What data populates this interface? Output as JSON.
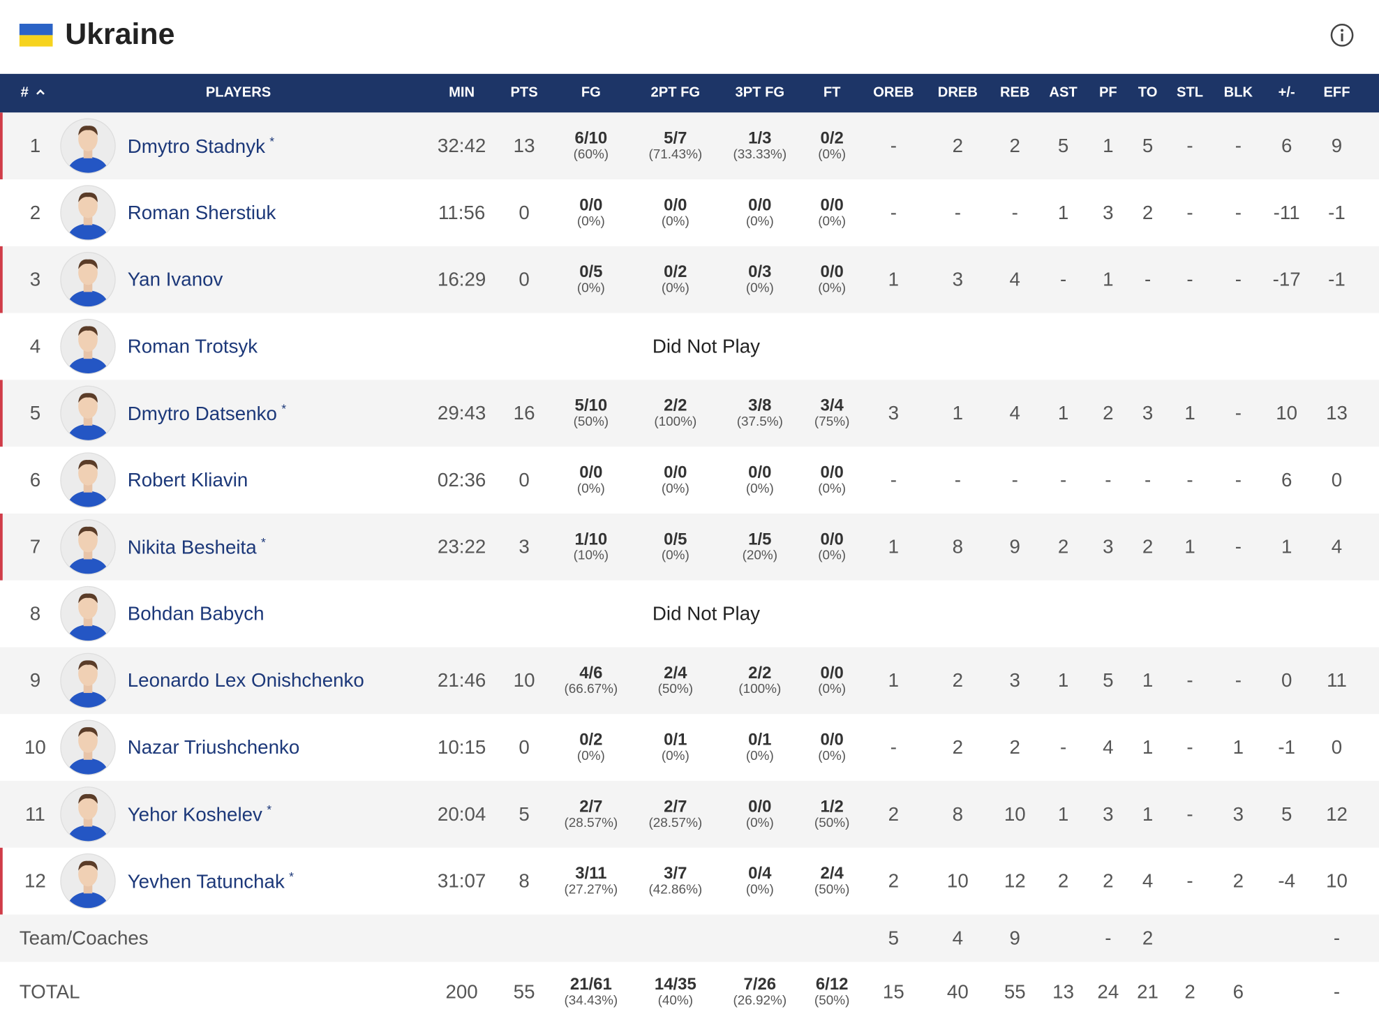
{
  "header": {
    "title": "Ukraine"
  },
  "table": {
    "columns": [
      "#",
      "PLAYERS",
      "MIN",
      "PTS",
      "FG",
      "2PT FG",
      "3PT FG",
      "FT",
      "OREB",
      "DREB",
      "REB",
      "AST",
      "PF",
      "TO",
      "STL",
      "BLK",
      "+/-",
      "EFF"
    ],
    "rows": [
      {
        "number": "1",
        "name": "Dmytro Stadnyk",
        "starter": "*",
        "stats": [
          "32:42",
          "13",
          {
            "m": "6/10",
            "p": "(60%)"
          },
          {
            "m": "5/7",
            "p": "(71.43%)"
          },
          {
            "m": "1/3",
            "p": "(33.33%)"
          },
          {
            "m": "0/2",
            "p": "(0%)"
          },
          "-",
          "2",
          "2",
          "5",
          "1",
          "5",
          "-",
          "-",
          "6",
          "9"
        ]
      },
      {
        "number": "2",
        "name": "Roman Sherstiuk",
        "stats": [
          "11:56",
          "0",
          {
            "m": "0/0",
            "p": "(0%)"
          },
          {
            "m": "0/0",
            "p": "(0%)"
          },
          {
            "m": "0/0",
            "p": "(0%)"
          },
          {
            "m": "0/0",
            "p": "(0%)"
          },
          "-",
          "-",
          "-",
          "1",
          "3",
          "2",
          "-",
          "-",
          "-11",
          "-1"
        ]
      },
      {
        "number": "3",
        "name": "Yan Ivanov",
        "stats": [
          "16:29",
          "0",
          {
            "m": "0/5",
            "p": "(0%)"
          },
          {
            "m": "0/2",
            "p": "(0%)"
          },
          {
            "m": "0/3",
            "p": "(0%)"
          },
          {
            "m": "0/0",
            "p": "(0%)"
          },
          "1",
          "3",
          "4",
          "-",
          "1",
          "-",
          "-",
          "-",
          "-17",
          "-1"
        ]
      },
      {
        "number": "4",
        "name": "Roman Trotsyk",
        "dnp": "Did Not Play"
      },
      {
        "number": "5",
        "name": "Dmytro Datsenko",
        "starter": "*",
        "stats": [
          "29:43",
          "16",
          {
            "m": "5/10",
            "p": "(50%)"
          },
          {
            "m": "2/2",
            "p": "(100%)"
          },
          {
            "m": "3/8",
            "p": "(37.5%)"
          },
          {
            "m": "3/4",
            "p": "(75%)"
          },
          "3",
          "1",
          "4",
          "1",
          "2",
          "3",
          "1",
          "-",
          "10",
          "13"
        ]
      },
      {
        "number": "6",
        "name": "Robert Kliavin",
        "stats": [
          "02:36",
          "0",
          {
            "m": "0/0",
            "p": "(0%)"
          },
          {
            "m": "0/0",
            "p": "(0%)"
          },
          {
            "m": "0/0",
            "p": "(0%)"
          },
          {
            "m": "0/0",
            "p": "(0%)"
          },
          "-",
          "-",
          "-",
          "-",
          "-",
          "-",
          "-",
          "-",
          "6",
          "0"
        ]
      },
      {
        "number": "7",
        "name": "Nikita Besheita",
        "starter": "*",
        "stats": [
          "23:22",
          "3",
          {
            "m": "1/10",
            "p": "(10%)"
          },
          {
            "m": "0/5",
            "p": "(0%)"
          },
          {
            "m": "1/5",
            "p": "(20%)"
          },
          {
            "m": "0/0",
            "p": "(0%)"
          },
          "1",
          "8",
          "9",
          "2",
          "3",
          "2",
          "1",
          "-",
          "1",
          "4"
        ]
      },
      {
        "number": "8",
        "name": "Bohdan Babych",
        "dnp": "Did Not Play"
      },
      {
        "number": "9",
        "name": "Leonardo Lex Onishchenko",
        "stats": [
          "21:46",
          "10",
          {
            "m": "4/6",
            "p": "(66.67%)"
          },
          {
            "m": "2/4",
            "p": "(50%)"
          },
          {
            "m": "2/2",
            "p": "(100%)"
          },
          {
            "m": "0/0",
            "p": "(0%)"
          },
          "1",
          "2",
          "3",
          "1",
          "5",
          "1",
          "-",
          "-",
          "0",
          "11"
        ]
      },
      {
        "number": "10",
        "name": "Nazar Triushchenko",
        "stats": [
          "10:15",
          "0",
          {
            "m": "0/2",
            "p": "(0%)"
          },
          {
            "m": "0/1",
            "p": "(0%)"
          },
          {
            "m": "0/1",
            "p": "(0%)"
          },
          {
            "m": "0/0",
            "p": "(0%)"
          },
          "-",
          "2",
          "2",
          "-",
          "4",
          "1",
          "-",
          "1",
          "-1",
          "0"
        ]
      },
      {
        "number": "11",
        "name": "Yehor Koshelev",
        "starter": "*",
        "stats": [
          "20:04",
          "5",
          {
            "m": "2/7",
            "p": "(28.57%)"
          },
          {
            "m": "2/7",
            "p": "(28.57%)"
          },
          {
            "m": "0/0",
            "p": "(0%)"
          },
          {
            "m": "1/2",
            "p": "(50%)"
          },
          "2",
          "8",
          "10",
          "1",
          "3",
          "1",
          "-",
          "3",
          "5",
          "12"
        ]
      },
      {
        "number": "12",
        "name": "Yevhen Tatunchak",
        "starter": "*",
        "stats": [
          "31:07",
          "8",
          {
            "m": "3/11",
            "p": "(27.27%)"
          },
          {
            "m": "3/7",
            "p": "(42.86%)"
          },
          {
            "m": "0/4",
            "p": "(0%)"
          },
          {
            "m": "2/4",
            "p": "(50%)"
          },
          "2",
          "10",
          "12",
          "2",
          "2",
          "4",
          "-",
          "2",
          "-4",
          "10"
        ]
      }
    ],
    "team": {
      "label": "Team/Coaches",
      "stats": [
        null,
        null,
        null,
        null,
        null,
        null,
        "5",
        "4",
        "9",
        null,
        "-",
        "2",
        null,
        null,
        null,
        "-"
      ]
    },
    "total": {
      "label": "TOTAL",
      "stats": [
        "200",
        "55",
        {
          "m": "21/61",
          "p": "(34.43%)"
        },
        {
          "m": "14/35",
          "p": "(40%)"
        },
        {
          "m": "7/26",
          "p": "(26.92%)"
        },
        {
          "m": "6/12",
          "p": "(50%)"
        },
        "15",
        "40",
        "55",
        "13",
        "24",
        "21",
        "2",
        "6",
        null,
        "-"
      ]
    }
  }
}
